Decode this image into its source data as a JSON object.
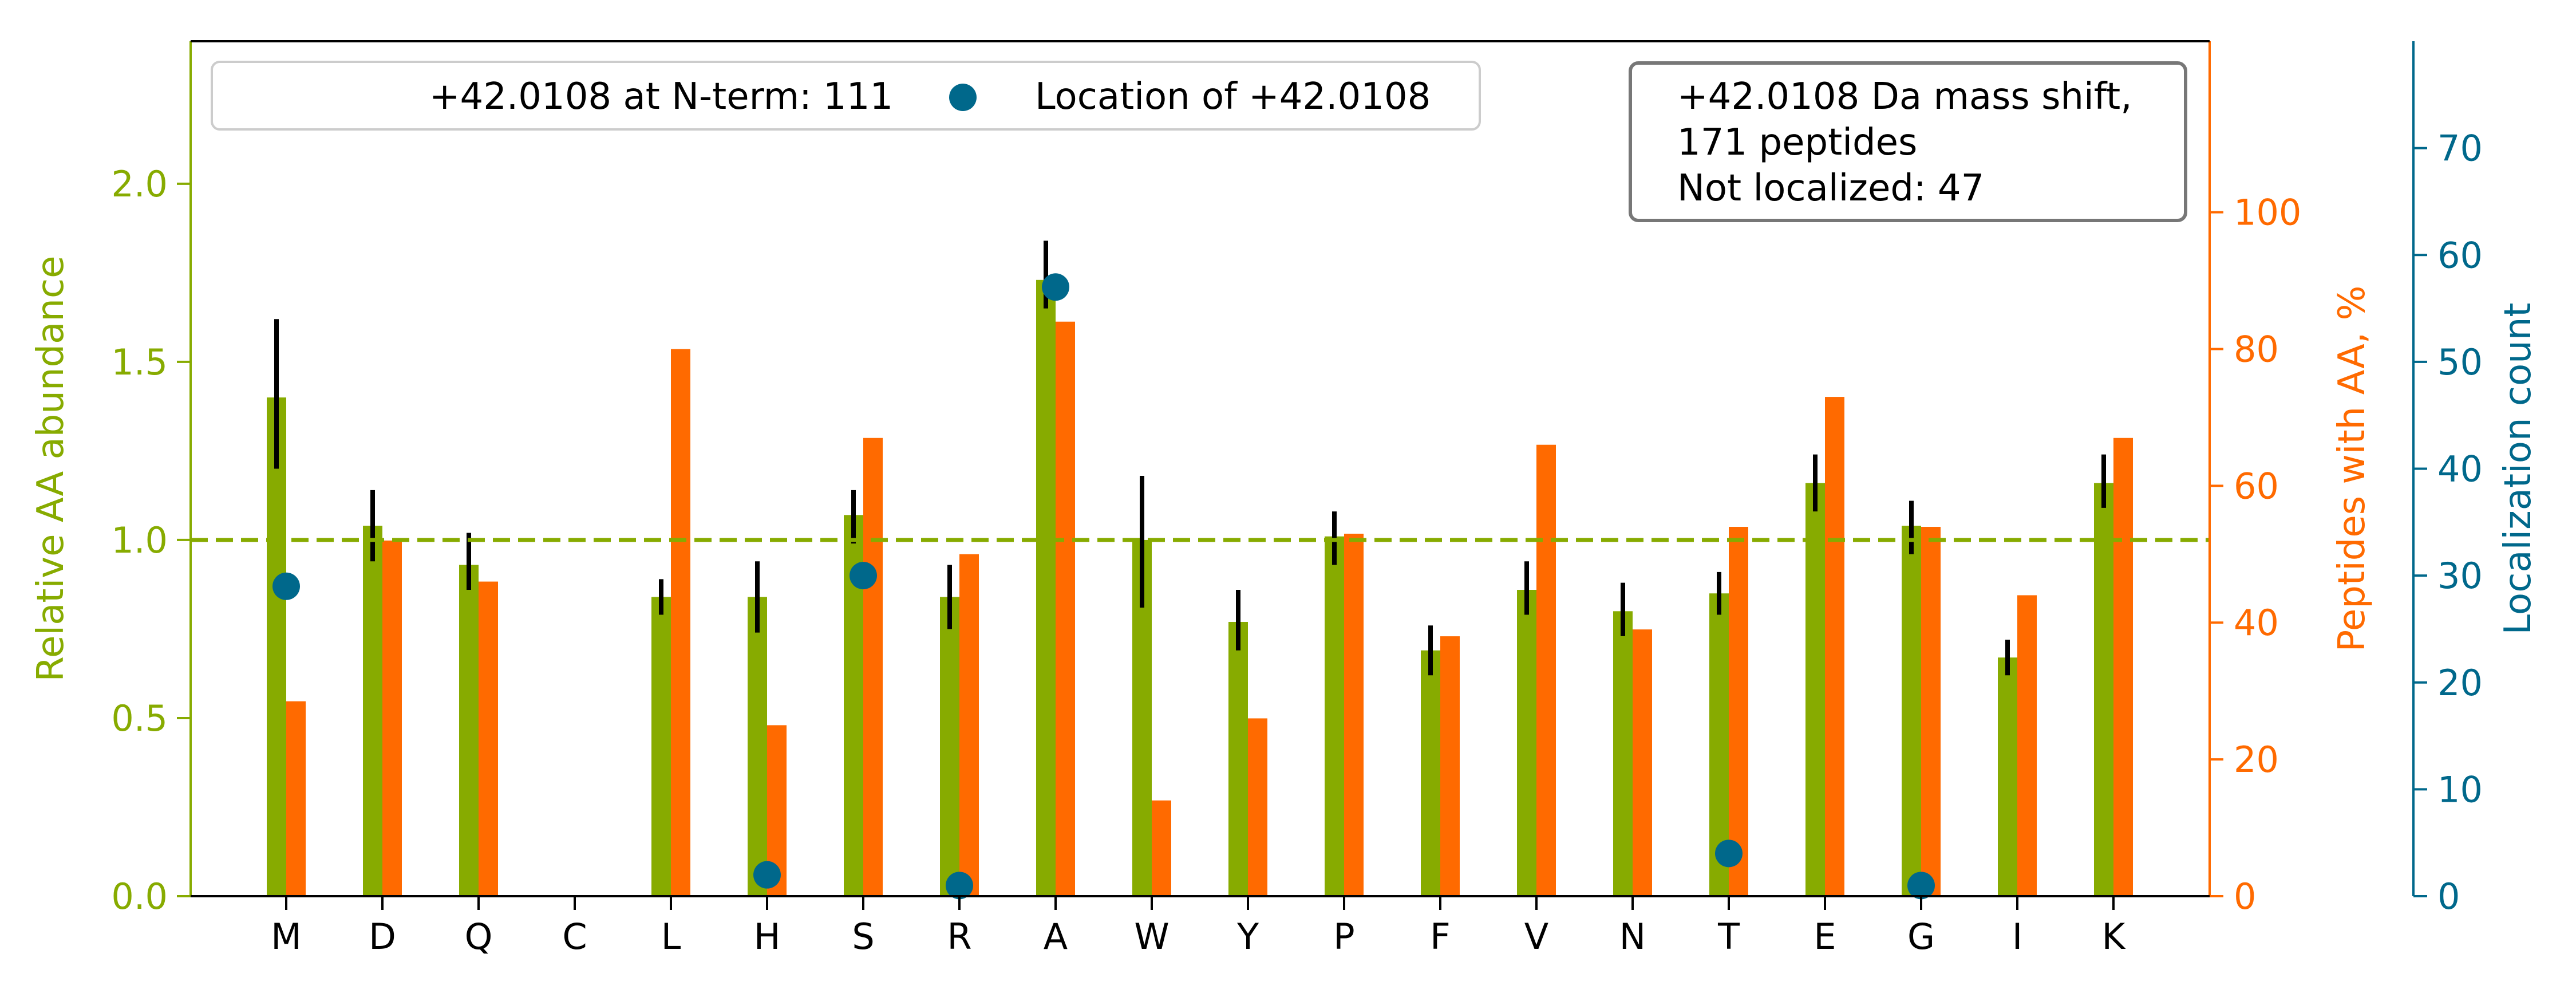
{
  "colors": {
    "abundance": "#87ab00",
    "peptides": "#ff6a00",
    "localization": "#00688b",
    "error": "#000000",
    "axis": "#000000"
  },
  "chart_data": {
    "type": "bar",
    "categories": [
      "M",
      "D",
      "Q",
      "C",
      "L",
      "H",
      "S",
      "R",
      "A",
      "W",
      "Y",
      "P",
      "F",
      "V",
      "N",
      "T",
      "E",
      "G",
      "I",
      "K"
    ],
    "series": [
      {
        "key": "abundance",
        "axis": "left",
        "mark": "bar",
        "values": [
          1.4,
          1.04,
          0.93,
          null,
          0.84,
          0.84,
          1.07,
          0.84,
          1.73,
          1.0,
          0.77,
          1.01,
          0.69,
          0.86,
          0.8,
          0.85,
          1.16,
          1.04,
          0.67,
          1.16
        ],
        "error_low": [
          1.2,
          0.94,
          0.86,
          null,
          0.79,
          0.74,
          0.99,
          0.75,
          1.65,
          0.81,
          0.69,
          0.93,
          0.62,
          0.79,
          0.73,
          0.79,
          1.08,
          0.96,
          0.62,
          1.09
        ],
        "error_high": [
          1.62,
          1.14,
          1.02,
          null,
          0.89,
          0.94,
          1.14,
          0.93,
          1.84,
          1.18,
          0.86,
          1.08,
          0.76,
          0.94,
          0.88,
          0.91,
          1.24,
          1.11,
          0.72,
          1.24
        ]
      },
      {
        "key": "peptides",
        "axis": "right",
        "mark": "bar",
        "values": [
          28.5,
          52,
          46,
          null,
          80,
          25,
          67,
          50,
          84,
          14,
          26,
          53,
          38,
          66,
          39,
          54,
          73,
          54,
          44,
          67
        ]
      },
      {
        "key": "localization",
        "axis": "far-right",
        "mark": "point",
        "name": "Location of +42.0108",
        "values": [
          29,
          null,
          null,
          null,
          null,
          2,
          30,
          1,
          57,
          null,
          null,
          null,
          null,
          null,
          null,
          4,
          null,
          1,
          null,
          null
        ]
      }
    ],
    "axes": {
      "left": {
        "label": "Relative AA abundance",
        "ylim": [
          0,
          2.4
        ],
        "ticks": [
          0.0,
          0.5,
          1.0,
          1.5,
          2.0
        ],
        "tick_labels": [
          "0.0",
          "0.5",
          "1.0",
          "1.5",
          "2.0"
        ]
      },
      "right": {
        "label": "Peptides with AA, %",
        "ylim": [
          0,
          125
        ],
        "ticks": [
          0,
          20,
          40,
          60,
          80,
          100
        ],
        "tick_labels": [
          "0",
          "20",
          "40",
          "60",
          "80",
          "100"
        ]
      },
      "far_right": {
        "label": "Localization count",
        "ylim": [
          0,
          80
        ],
        "ticks": [
          0,
          10,
          20,
          30,
          40,
          50,
          60,
          70
        ],
        "tick_labels": [
          "0",
          "10",
          "20",
          "30",
          "40",
          "50",
          "60",
          "70"
        ]
      }
    },
    "reference_line": {
      "value": 1.0,
      "axis": "left",
      "style": "dashed"
    },
    "legend": {
      "placement": "top-left",
      "entries": [
        {
          "label": "+42.0108 at N-term: 111",
          "marker": "none"
        },
        {
          "label": "Location of +42.0108",
          "marker": "point"
        }
      ]
    },
    "annotation": {
      "placement": "top-right",
      "lines": [
        "+42.0108 Da mass shift,",
        "171 peptides",
        "Not localized: 47"
      ]
    }
  }
}
